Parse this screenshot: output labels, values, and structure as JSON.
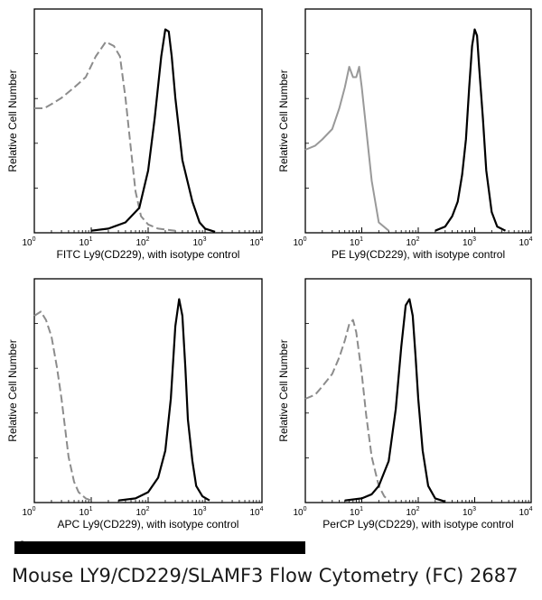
{
  "chart_data": [
    {
      "type": "line",
      "xlabel": "FITC Ly9(CD229),  with isotype control",
      "ylabel": "Relative Cell Number",
      "x_scale": "log",
      "xlim": [
        1,
        10000
      ],
      "ylim": [
        0,
        1
      ],
      "x_ticks": [
        "10",
        "10",
        "10",
        "10",
        "10"
      ],
      "x_tick_exponents": [
        "0",
        "1",
        "2",
        "3",
        "4"
      ],
      "series": [
        {
          "style": "gray-dashed",
          "x": [
            1,
            1.5,
            2,
            3,
            5,
            8,
            12,
            18,
            25,
            32,
            40,
            50,
            60,
            75,
            100,
            150,
            300
          ],
          "y": [
            0.6,
            0.6,
            0.62,
            0.65,
            0.7,
            0.75,
            0.85,
            0.92,
            0.9,
            0.85,
            0.65,
            0.4,
            0.2,
            0.08,
            0.04,
            0.02,
            0.01
          ]
        },
        {
          "style": "black-solid",
          "x": [
            10,
            20,
            40,
            70,
            100,
            130,
            170,
            200,
            230,
            260,
            300,
            400,
            600,
            800,
            1000,
            1500
          ],
          "y": [
            0.01,
            0.02,
            0.05,
            0.12,
            0.3,
            0.55,
            0.85,
            0.98,
            0.97,
            0.85,
            0.65,
            0.35,
            0.15,
            0.05,
            0.02,
            0.005
          ]
        }
      ]
    },
    {
      "type": "line",
      "xlabel": "PE Ly9(CD229),  with isotype control",
      "ylabel": "Relative Cell Number",
      "x_scale": "log",
      "xlim": [
        1,
        10000
      ],
      "ylim": [
        0,
        1
      ],
      "x_ticks": [
        "10",
        "10",
        "10",
        "10",
        "10"
      ],
      "x_tick_exponents": [
        "0",
        "1",
        "2",
        "3",
        "4"
      ],
      "series": [
        {
          "style": "gray-solid",
          "x": [
            1,
            1.5,
            2,
            3,
            4,
            5,
            6,
            7,
            8,
            9,
            10,
            12,
            15,
            20,
            30
          ],
          "y": [
            0.4,
            0.42,
            0.45,
            0.5,
            0.6,
            0.7,
            0.8,
            0.75,
            0.75,
            0.8,
            0.7,
            0.5,
            0.25,
            0.05,
            0.01
          ]
        },
        {
          "style": "black-solid",
          "x": [
            200,
            300,
            400,
            500,
            600,
            700,
            800,
            900,
            1000,
            1100,
            1200,
            1400,
            1600,
            2000,
            2500,
            3500
          ],
          "y": [
            0.01,
            0.03,
            0.08,
            0.15,
            0.28,
            0.45,
            0.7,
            0.9,
            0.98,
            0.95,
            0.8,
            0.55,
            0.3,
            0.1,
            0.03,
            0.01
          ]
        }
      ]
    },
    {
      "type": "line",
      "xlabel": "APC Ly9(CD229),  with isotype control",
      "ylabel": "Relative Cell Number",
      "x_scale": "log",
      "xlim": [
        1,
        10000
      ],
      "ylim": [
        0,
        1
      ],
      "x_ticks": [
        "10",
        "10",
        "10",
        "10",
        "10"
      ],
      "x_tick_exponents": [
        "0",
        "1",
        "2",
        "3",
        "4"
      ],
      "series": [
        {
          "style": "gray-dashed",
          "x": [
            1,
            1.3,
            1.6,
            2,
            2.5,
            3,
            3.5,
            4,
            5,
            6,
            8,
            10
          ],
          "y": [
            0.9,
            0.92,
            0.88,
            0.8,
            0.65,
            0.5,
            0.35,
            0.22,
            0.1,
            0.05,
            0.02,
            0.01
          ]
        },
        {
          "style": "black-solid",
          "x": [
            30,
            60,
            100,
            150,
            200,
            250,
            300,
            350,
            400,
            450,
            500,
            600,
            700,
            900,
            1200
          ],
          "y": [
            0.01,
            0.02,
            0.05,
            0.12,
            0.25,
            0.5,
            0.85,
            0.98,
            0.9,
            0.65,
            0.4,
            0.2,
            0.08,
            0.03,
            0.01
          ]
        }
      ]
    },
    {
      "type": "line",
      "xlabel": "PerCP Ly9(CD229), with isotype control",
      "ylabel": "Relative Cell Number",
      "x_scale": "log",
      "xlim": [
        1,
        10000
      ],
      "ylim": [
        0,
        1
      ],
      "x_ticks": [
        "10",
        "10",
        "10",
        "10",
        "10"
      ],
      "x_tick_exponents": [
        "0",
        "1",
        "2",
        "3",
        "4"
      ],
      "series": [
        {
          "style": "gray-dashed",
          "x": [
            1,
            1.5,
            2,
            3,
            4,
            5,
            6,
            7,
            8,
            10,
            12,
            15,
            20,
            25,
            30
          ],
          "y": [
            0.5,
            0.52,
            0.56,
            0.62,
            0.7,
            0.78,
            0.86,
            0.88,
            0.82,
            0.62,
            0.42,
            0.22,
            0.08,
            0.03,
            0.01
          ]
        },
        {
          "style": "black-solid",
          "x": [
            5,
            10,
            15,
            20,
            30,
            40,
            50,
            60,
            70,
            80,
            90,
            100,
            120,
            150,
            200,
            300
          ],
          "y": [
            0.01,
            0.02,
            0.04,
            0.08,
            0.2,
            0.45,
            0.75,
            0.95,
            0.98,
            0.9,
            0.7,
            0.5,
            0.25,
            0.08,
            0.02,
            0.005
          ]
        }
      ]
    }
  ],
  "footer": {
    "copyright_symbol": "©",
    "caption": "Mouse LY9/CD229/SLAMF3 Flow Cytometry (FC) 2687"
  }
}
